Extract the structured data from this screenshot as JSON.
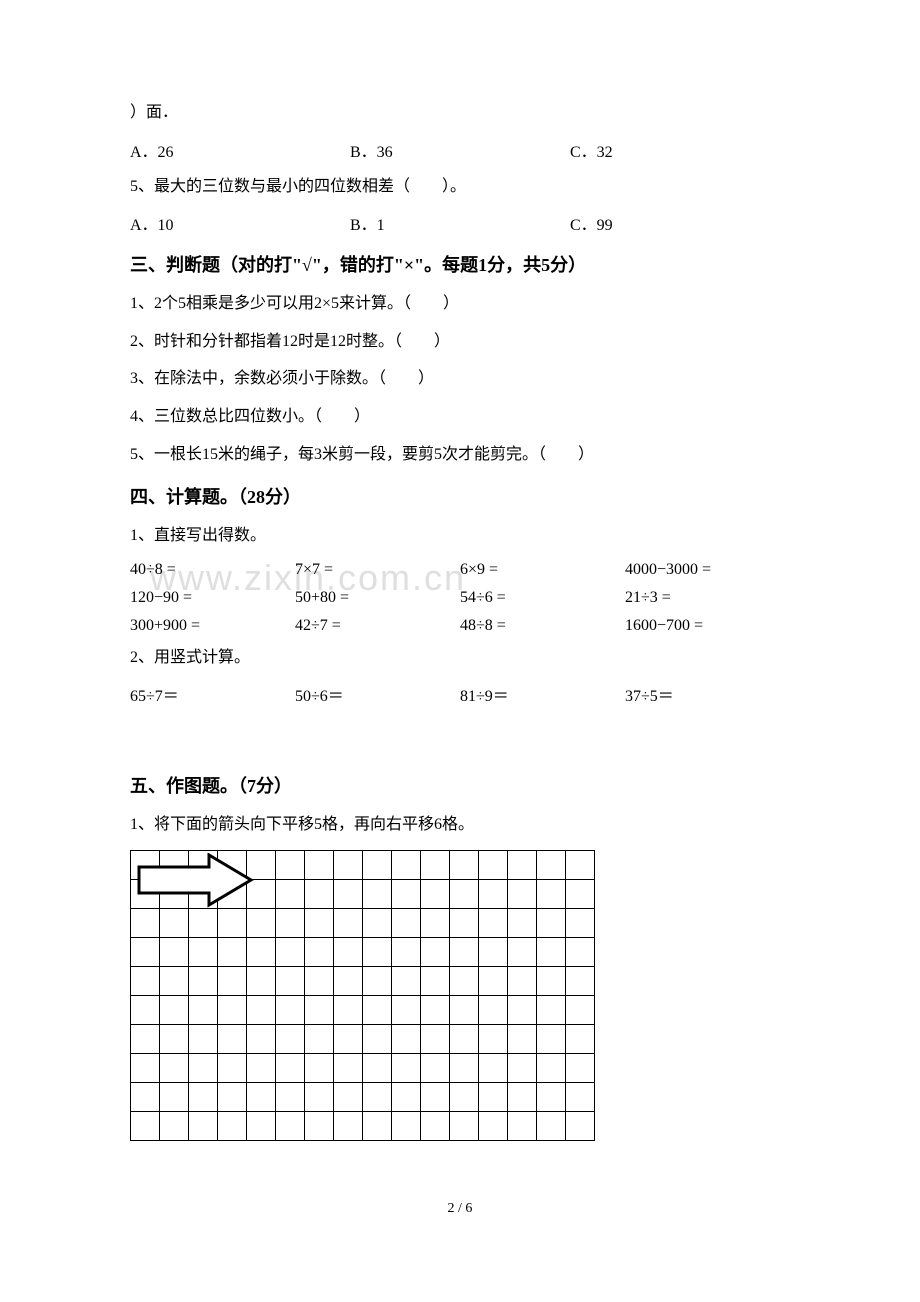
{
  "q4_continuation": "）面．",
  "q4_options": {
    "a": "A．26",
    "b": "B．36",
    "c": "C．32"
  },
  "q5": "5、最大的三位数与最小的四位数相差（　　）。",
  "q5_options": {
    "a": "A．10",
    "b": "B．1",
    "c": "C．99"
  },
  "section3_header": "三、判断题（对的打\"√\"，错的打\"×\"。每题1分，共5分）",
  "section3": {
    "q1": "1、2个5相乘是多少可以用2×5来计算。（　　）",
    "q2": "2、时针和分针都指着12时是12时整。（　　）",
    "q3": "3、在除法中，余数必须小于除数。（　　）",
    "q4": "4、三位数总比四位数小。（　　）",
    "q5": "5、一根长15米的绳子，每3米剪一段，要剪5次才能剪完。（　　）"
  },
  "section4_header": "四、计算题。（28分）",
  "section4": {
    "q1_label": "1、直接写出得数。",
    "rows": [
      [
        "40÷8 =",
        "7×7 =",
        "6×9 =",
        "4000−3000 ="
      ],
      [
        "120−90 =",
        "50+80 =",
        "54÷6 =",
        "21÷3 ="
      ],
      [
        "300+900 =",
        "42÷7 =",
        "48÷8 =",
        "1600−700 ="
      ]
    ],
    "q2_label": "2、用竖式计算。",
    "q2_row": [
      "65÷7＝",
      "50÷6＝",
      "81÷9＝",
      "37÷5＝"
    ]
  },
  "section5_header": "五、作图题。（7分）",
  "section5": {
    "q1": "1、将下面的箭头向下平移5格，再向右平移6格。"
  },
  "grid": {
    "rows": 10,
    "cols": 16,
    "cell_size": 29,
    "border_color": "#000000"
  },
  "arrow": {
    "fill": "#ffffff",
    "stroke": "#000000",
    "stroke_width": 3
  },
  "watermark_text": "www.zixin.com.cn",
  "page_number": "2 / 6"
}
